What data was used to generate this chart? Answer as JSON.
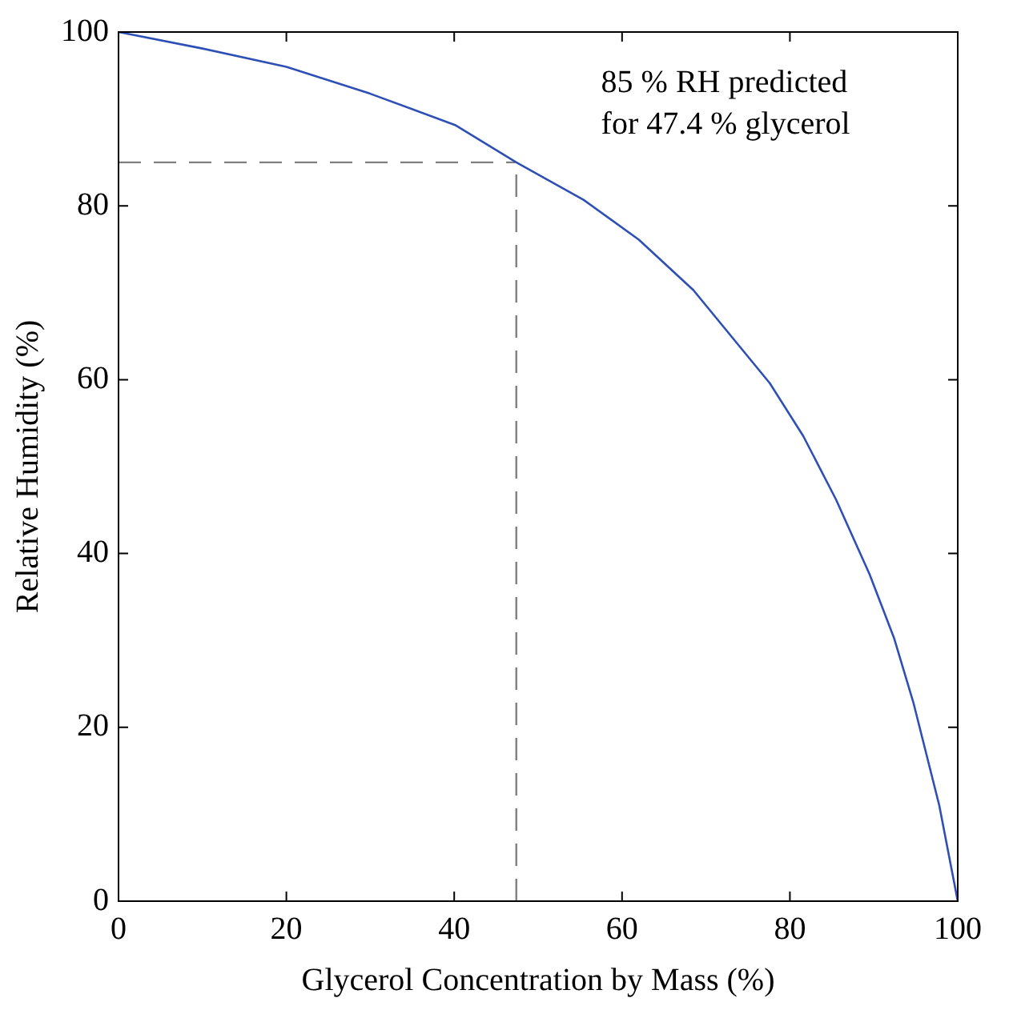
{
  "chart_data": {
    "type": "line",
    "xlabel": "Glycerol Concentration by Mass (%)",
    "ylabel": "Relative Humidity (%)",
    "x": [
      0,
      10,
      20,
      30,
      40.1,
      47.4,
      55.4,
      62,
      68.5,
      77.6,
      81.6,
      85.5,
      89.5,
      92.4,
      94.7,
      97.8,
      100
    ],
    "series": [
      {
        "color": "#2e4fb5",
        "values": [
          100,
          98.1,
          96,
          92.9,
          89.3,
          85,
          80.7,
          76.1,
          70.3,
          59.6,
          53.5,
          46.2,
          37.6,
          30.3,
          22.9,
          11,
          0
        ]
      }
    ],
    "xlim": [
      0,
      100
    ],
    "xticks": [
      0,
      20,
      40,
      60,
      80,
      100
    ],
    "ylim": [
      0,
      100
    ],
    "yticks": [
      0,
      20,
      40,
      60,
      80,
      100
    ],
    "ref_lines": [
      {
        "axis": "x",
        "value": 47.4,
        "color": "#808080",
        "line_style": "dashed"
      },
      {
        "axis": "y",
        "value": 85,
        "color": "#808080",
        "line_style": "dashed"
      }
    ],
    "annotations": [
      "85 % RH predicted\nfor 47.4 % glycerol"
    ],
    "grid": false,
    "legend": false,
    "marker": "none",
    "line_style": "solid"
  }
}
